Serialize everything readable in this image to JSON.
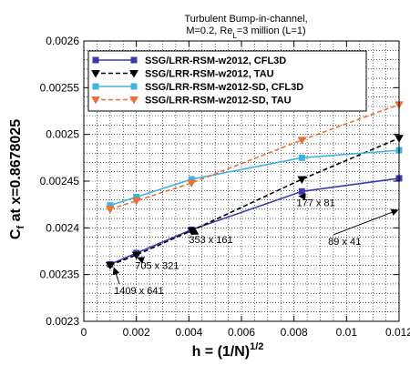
{
  "chart_data": {
    "type": "line",
    "title_lines": [
      "Turbulent Bump-in-channel,",
      "M=0.2, Re",
      "L",
      "=3 million (L=1)"
    ],
    "xlabel": {
      "main": "h = (1/N)",
      "sup": "1/2"
    },
    "ylabel": {
      "main": "C",
      "sub": "f",
      "rest": " at x=0.8678025"
    },
    "xlim": [
      0,
      0.012
    ],
    "ylim": [
      0.0023,
      0.0026
    ],
    "x_ticks": [
      0,
      0.002,
      0.004,
      0.006,
      0.008,
      0.01,
      0.012
    ],
    "x_tick_labels": [
      "0",
      "0.002",
      "0.004",
      "0.006",
      "0.008",
      "0.01",
      "0.012"
    ],
    "y_ticks": [
      0.0023,
      0.00235,
      0.0024,
      0.00245,
      0.0025,
      0.00255,
      0.0026
    ],
    "y_tick_labels": [
      "0.0023",
      "0.00235",
      "0.0024",
      "0.00245",
      "0.0025",
      "0.00255",
      "0.0026"
    ],
    "grid": true,
    "legend_position": "top-left",
    "series": [
      {
        "name": "SSG/LRR-RSM-w2012, CFL3D",
        "color": "#3a3ab0",
        "dash": "solid",
        "marker": "square",
        "x": [
          0.001,
          0.002,
          0.0041,
          0.0083,
          0.012
        ],
        "y": [
          0.002361,
          0.002373,
          0.002398,
          0.002439,
          0.002453
        ]
      },
      {
        "name": "SSG/LRR-RSM-w2012, TAU",
        "color": "#000000",
        "dash": "dashed",
        "marker": "triangle-down",
        "x": [
          0.001,
          0.002,
          0.0041,
          0.0083,
          0.012
        ],
        "y": [
          0.00236,
          0.002371,
          0.002397,
          0.002452,
          0.002496
        ]
      },
      {
        "name": "SSG/LRR-RSM-w2012-SD, CFL3D",
        "color": "#40b4e0",
        "dash": "solid",
        "marker": "square",
        "x": [
          0.001,
          0.002,
          0.0041,
          0.0083,
          0.012
        ],
        "y": [
          0.002424,
          0.002433,
          0.002452,
          0.002475,
          0.002483
        ]
      },
      {
        "name": "SSG/LRR-RSM-w2012-SD, TAU",
        "color": "#e8703a",
        "dash": "dashed",
        "marker": "triangle-down",
        "x": [
          0.001,
          0.002,
          0.0041,
          0.0083,
          0.012
        ],
        "y": [
          0.00242,
          0.002429,
          0.002448,
          0.002494,
          0.002532
        ]
      }
    ],
    "annotations": [
      {
        "text": "1409 x 641",
        "x": 0.00115,
        "y": 0.002329,
        "ax": 0.00115,
        "ay": 0.002357
      },
      {
        "text": "705 x 321",
        "x": 0.00195,
        "y": 0.002356,
        "ax": 0.00205,
        "ay": 0.002368
      },
      {
        "text": "353 x 161",
        "x": 0.004,
        "y": 0.002384,
        "ax": 0.0041,
        "ay": 0.002393
      },
      {
        "text": "177 x 81",
        "x": 0.0081,
        "y": 0.002423,
        "ax": 0.0082,
        "ay": 0.002434
      },
      {
        "text": "89 x 41",
        "x": 0.0093,
        "y": 0.002382,
        "ax": 0.01195,
        "ay": 0.002419
      }
    ]
  }
}
